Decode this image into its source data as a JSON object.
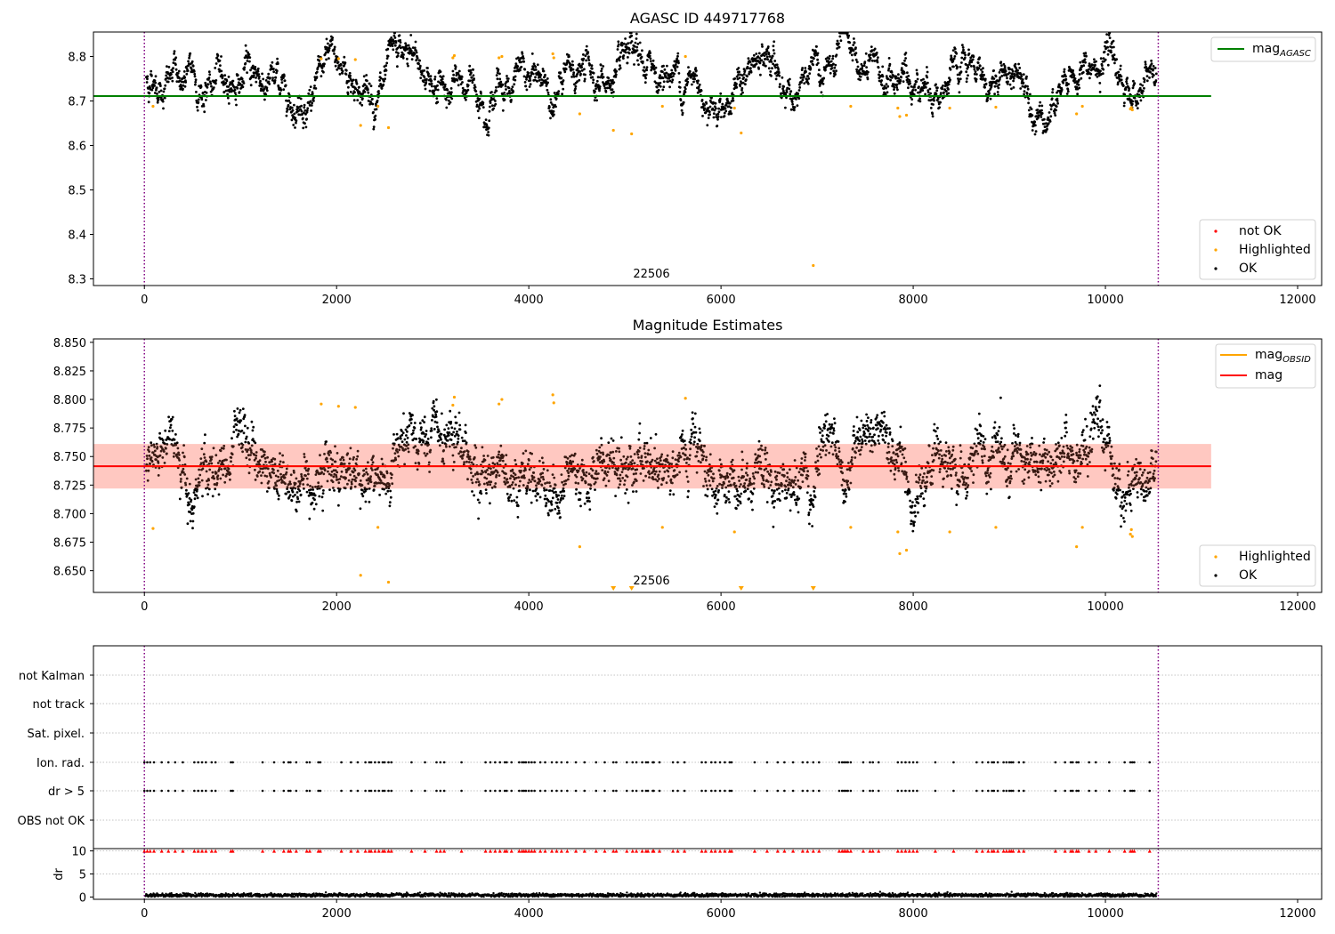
{
  "colors": {
    "ok": "#000000",
    "highlighted": "#ffa500",
    "not_ok": "#ff0000",
    "mag_agasc": "#008000",
    "mag_obsid": "#ffa500",
    "mag": "#ff0000",
    "band": "#ff9a9a",
    "obs_line": "#800080",
    "grid": "#b0b0b0"
  },
  "chart_data": [
    {
      "id": "agasc",
      "type": "scatter",
      "title": "AGASC ID 449717768",
      "xlim": [
        -530,
        12250
      ],
      "ylim": [
        8.285,
        8.855
      ],
      "x_ticks": [
        0,
        2000,
        4000,
        6000,
        8000,
        10000,
        12000
      ],
      "y_ticks": [
        8.3,
        8.4,
        8.5,
        8.6,
        8.7,
        8.8
      ],
      "grid": false,
      "obs_boundaries": [
        0,
        10550
      ],
      "obsid_label": {
        "text": "22506",
        "x": 5275,
        "y": 8.3
      },
      "reference_line": {
        "label": "mag",
        "subscript": "AGASC",
        "y": 8.711,
        "x_range": [
          -530,
          11100
        ]
      },
      "line_legend_position": "upper-right",
      "scatter_legend_position": "lower-right",
      "legend": [
        "not OK",
        "Highlighted",
        "OK"
      ],
      "ok_band": {
        "center": 8.745,
        "amplitude": 0.03,
        "spread": 0.018
      },
      "highlighted_points": [
        [
          90,
          8.688
        ],
        [
          1840,
          8.795
        ],
        [
          2020,
          8.795
        ],
        [
          2195,
          8.793
        ],
        [
          2250,
          8.645
        ],
        [
          2430,
          8.688
        ],
        [
          2540,
          8.64
        ],
        [
          3210,
          8.797
        ],
        [
          3225,
          8.802
        ],
        [
          3690,
          8.797
        ],
        [
          3720,
          8.8
        ],
        [
          4250,
          8.806
        ],
        [
          4260,
          8.797
        ],
        [
          4530,
          8.671
        ],
        [
          4880,
          8.634
        ],
        [
          5070,
          8.626
        ],
        [
          5390,
          8.688
        ],
        [
          5630,
          8.8
        ],
        [
          6140,
          8.684
        ],
        [
          6210,
          8.628
        ],
        [
          6960,
          8.33
        ],
        [
          7350,
          8.688
        ],
        [
          7840,
          8.684
        ],
        [
          7860,
          8.665
        ],
        [
          7930,
          8.668
        ],
        [
          8380,
          8.684
        ],
        [
          8860,
          8.686
        ],
        [
          9700,
          8.671
        ],
        [
          9760,
          8.688
        ],
        [
          10260,
          8.682
        ],
        [
          10270,
          8.685
        ],
        [
          10280,
          8.68
        ]
      ]
    },
    {
      "id": "estimates",
      "type": "scatter",
      "title": "Magnitude Estimates",
      "xlim": [
        -530,
        12250
      ],
      "ylim": [
        8.631,
        8.853
      ],
      "x_ticks": [
        0,
        2000,
        4000,
        6000,
        8000,
        10000,
        12000
      ],
      "y_ticks": [
        8.65,
        8.675,
        8.7,
        8.725,
        8.75,
        8.775,
        8.8,
        8.825,
        8.85
      ],
      "grid": false,
      "obs_boundaries": [
        0,
        10550
      ],
      "obsid_label": {
        "text": "22506",
        "x": 5275,
        "y": 8.635
      },
      "mag_obsid": {
        "label": "mag",
        "subscript": "OBSID",
        "y": 8.7415,
        "x_range": [
          0,
          10550
        ]
      },
      "mag": {
        "label": "mag",
        "y": 8.7415,
        "x_range": [
          -530,
          11100
        ]
      },
      "band": {
        "lower": 8.722,
        "upper": 8.761,
        "x_range": [
          -530,
          11100
        ]
      },
      "line_legend_position": "upper-right",
      "scatter_legend_position": "lower-right",
      "legend": [
        "Highlighted",
        "OK"
      ],
      "ok_band": {
        "center": 8.741,
        "amplitude": 0.014,
        "spread": 0.016
      },
      "highlighted_points": [
        [
          90,
          8.687
        ],
        [
          1840,
          8.796
        ],
        [
          2020,
          8.794
        ],
        [
          2195,
          8.793
        ],
        [
          2250,
          8.646
        ],
        [
          2430,
          8.688
        ],
        [
          2540,
          8.64
        ],
        [
          3210,
          8.795
        ],
        [
          3225,
          8.802
        ],
        [
          3690,
          8.796
        ],
        [
          3720,
          8.8
        ],
        [
          4250,
          8.804
        ],
        [
          4260,
          8.797
        ],
        [
          4530,
          8.671
        ],
        [
          5390,
          8.688
        ],
        [
          5630,
          8.801
        ],
        [
          6140,
          8.684
        ],
        [
          7350,
          8.688
        ],
        [
          7840,
          8.684
        ],
        [
          7860,
          8.665
        ],
        [
          7930,
          8.668
        ],
        [
          8380,
          8.684
        ],
        [
          8860,
          8.688
        ],
        [
          9700,
          8.671
        ],
        [
          9760,
          8.688
        ],
        [
          10260,
          8.682
        ],
        [
          10270,
          8.686
        ],
        [
          10280,
          8.68
        ]
      ],
      "off_scale_low": [
        4880,
        5070,
        6210,
        6960
      ]
    },
    {
      "id": "flags",
      "type": "scatter",
      "title": "",
      "xlim": [
        -530,
        12250
      ],
      "categories": [
        "not Kalman",
        "not track",
        "Sat. pixel.",
        "Ion. rad.",
        "dr > 5",
        "OBS not OK"
      ],
      "grid": true,
      "obs_boundaries": [
        0,
        10550
      ],
      "flag_times": [
        0,
        30,
        60,
        100,
        180,
        250,
        320,
        400,
        520,
        560,
        600,
        640,
        700,
        740,
        900,
        920,
        1230,
        1350,
        1450,
        1500,
        1520,
        1580,
        1690,
        1720,
        1810,
        1830,
        2050,
        2150,
        2220,
        2300,
        2340,
        2360,
        2400,
        2440,
        2480,
        2500,
        2540,
        2570,
        2780,
        2920,
        3040,
        3080,
        3120,
        3300,
        3550,
        3600,
        3650,
        3700,
        3750,
        3770,
        3820,
        3900,
        3930,
        3950,
        3970,
        4000,
        4030,
        4060,
        4120,
        4170,
        4240,
        4290,
        4340,
        4400,
        4490,
        4580,
        4700,
        4790,
        4880,
        4910,
        5020,
        5080,
        5120,
        5180,
        5220,
        5240,
        5290,
        5300,
        5360,
        5500,
        5550,
        5620,
        5800,
        5840,
        5900,
        5940,
        5990,
        6040,
        6090,
        6110,
        6350,
        6480,
        6590,
        6660,
        6750,
        6850,
        6900,
        6960,
        7020,
        7230,
        7260,
        7280,
        7300,
        7320,
        7350,
        7480,
        7550,
        7580,
        7640,
        7840,
        7880,
        7920,
        7960,
        8000,
        8040,
        8230,
        8420,
        8660,
        8720,
        8780,
        8820,
        8840,
        8880,
        8940,
        8970,
        9000,
        9020,
        9040,
        9100,
        9150,
        9480,
        9580,
        9640,
        9660,
        9700,
        9720,
        9830,
        9900,
        10040,
        10200,
        10260,
        10280,
        10300,
        10460
      ],
      "flag_rows": [
        "Ion. rad.",
        "dr > 5"
      ]
    },
    {
      "id": "dr",
      "type": "scatter",
      "title": "",
      "xlim": [
        -530,
        12250
      ],
      "ylim": [
        -0.5,
        10.5
      ],
      "ylabel": "dr",
      "y_ticks": [
        0,
        5,
        10
      ],
      "x_ticks": [
        0,
        2000,
        4000,
        6000,
        8000,
        10000,
        12000
      ],
      "grid": true,
      "obs_boundaries": [
        0,
        10550
      ],
      "clipped_value": 10,
      "typical_dr": 0.4
    }
  ]
}
